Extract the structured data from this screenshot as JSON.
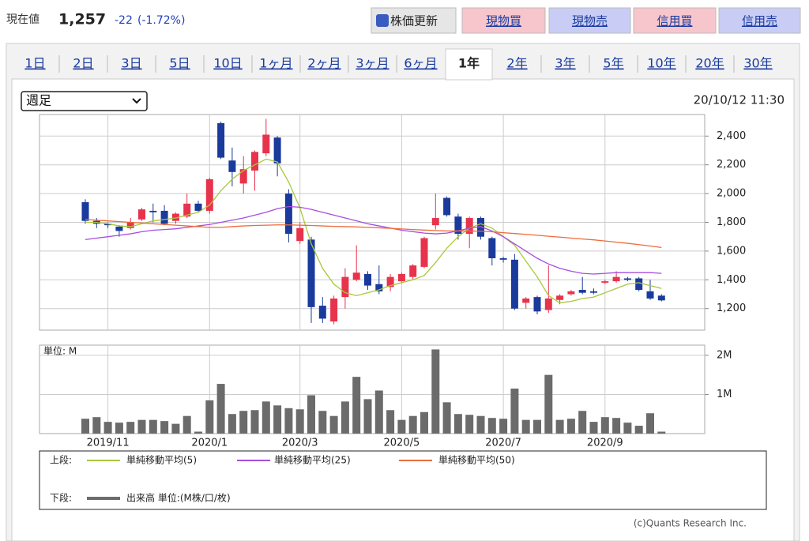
{
  "header": {
    "label": "現在値",
    "price": "1,257",
    "change": "-22",
    "change_pct": "(-1.72%)"
  },
  "buttons": [
    "株価更新",
    "現物買",
    "現物売",
    "信用買",
    "信用売"
  ],
  "tabs": [
    "1日",
    "2日",
    "3日",
    "5日",
    "10日",
    "1ヶ月",
    "2ヶ月",
    "3ヶ月",
    "6ヶ月",
    "1年",
    "2年",
    "3年",
    "5年",
    "10年",
    "20年",
    "30年"
  ],
  "active_tab": 9,
  "period_select": "週足",
  "timestamp": "20/10/12 11:30",
  "chart_data": [
    {
      "type": "candlestick",
      "up_color": "#e8334d",
      "down_color": "#1a3a9c",
      "grid": true,
      "open": [
        1940,
        1810,
        1790,
        1770,
        1760,
        1820,
        1880,
        1880,
        1810,
        1840,
        1930,
        1880,
        2490,
        2230,
        2070,
        2160,
        2280,
        2390,
        2000,
        1670,
        1680,
        1220,
        1110,
        1280,
        1400,
        1440,
        1370,
        1350,
        1390,
        1420,
        1490,
        1780,
        1970,
        1840,
        1720,
        1830,
        1690,
        1550,
        1540,
        1240,
        1280,
        1190,
        1260,
        1300,
        1330,
        1320,
        1380,
        1390,
        1410,
        1410,
        1320,
        1290
      ],
      "high": [
        1960,
        1830,
        1800,
        1780,
        1830,
        1900,
        1930,
        1920,
        1870,
        2000,
        1950,
        2110,
        2500,
        2320,
        2260,
        2300,
        2520,
        2400,
        2030,
        1800,
        1700,
        1280,
        1290,
        1480,
        1640,
        1460,
        1500,
        1440,
        1450,
        1510,
        1700,
        2000,
        1980,
        1860,
        1840,
        1840,
        1700,
        1560,
        1580,
        1280,
        1290,
        1500,
        1300,
        1330,
        1420,
        1340,
        1400,
        1460,
        1420,
        1420,
        1400,
        1300
      ],
      "low": [
        1790,
        1760,
        1760,
        1700,
        1750,
        1810,
        1800,
        1780,
        1790,
        1830,
        1870,
        1860,
        2240,
        2050,
        2000,
        2020,
        2260,
        2120,
        1660,
        1650,
        1100,
        1100,
        1090,
        1200,
        1390,
        1330,
        1300,
        1320,
        1380,
        1400,
        1480,
        1750,
        1840,
        1680,
        1620,
        1680,
        1500,
        1520,
        1190,
        1200,
        1160,
        1170,
        1230,
        1290,
        1300,
        1300,
        1370,
        1380,
        1390,
        1320,
        1260,
        1250
      ],
      "close": [
        1810,
        1790,
        1780,
        1740,
        1800,
        1890,
        1870,
        1790,
        1860,
        1930,
        1880,
        2100,
        2250,
        2150,
        2170,
        2290,
        2410,
        2210,
        1720,
        1760,
        1210,
        1130,
        1270,
        1420,
        1450,
        1360,
        1320,
        1420,
        1440,
        1500,
        1690,
        1830,
        1850,
        1720,
        1830,
        1700,
        1550,
        1540,
        1200,
        1270,
        1180,
        1270,
        1290,
        1320,
        1310,
        1310,
        1390,
        1420,
        1400,
        1330,
        1270,
        1257
      ],
      "lines": [
        {
          "name": "単純移動平均(5)",
          "color": "#a8c83a",
          "values": [
            1800,
            1800,
            1790,
            1775,
            1770,
            1790,
            1810,
            1820,
            1830,
            1850,
            1870,
            1920,
            2020,
            2100,
            2160,
            2200,
            2240,
            2220,
            2080,
            1900,
            1650,
            1480,
            1370,
            1310,
            1290,
            1310,
            1330,
            1360,
            1380,
            1400,
            1430,
            1520,
            1620,
            1700,
            1760,
            1790,
            1760,
            1700,
            1640,
            1530,
            1420,
            1290,
            1240,
            1250,
            1270,
            1280,
            1310,
            1340,
            1370,
            1380,
            1360,
            1340
          ]
        },
        {
          "name": "単純移動平均(25)",
          "color": "#a64ee0",
          "values": [
            1680,
            1690,
            1700,
            1710,
            1720,
            1735,
            1745,
            1750,
            1755,
            1765,
            1775,
            1785,
            1800,
            1815,
            1830,
            1850,
            1870,
            1895,
            1910,
            1905,
            1890,
            1870,
            1850,
            1830,
            1810,
            1790,
            1775,
            1760,
            1745,
            1735,
            1725,
            1720,
            1725,
            1740,
            1760,
            1770,
            1740,
            1700,
            1650,
            1600,
            1550,
            1510,
            1480,
            1460,
            1445,
            1440,
            1445,
            1450,
            1450,
            1450,
            1450,
            1445
          ]
        },
        {
          "name": "単純移動平均(50)",
          "color": "#ef6a3c",
          "values": [
            1820,
            1815,
            1810,
            1805,
            1800,
            1795,
            1790,
            1785,
            1780,
            1775,
            1770,
            1765,
            1765,
            1770,
            1775,
            1778,
            1780,
            1782,
            1782,
            1780,
            1778,
            1775,
            1772,
            1770,
            1768,
            1765,
            1762,
            1758,
            1754,
            1750,
            1746,
            1743,
            1740,
            1740,
            1740,
            1738,
            1734,
            1728,
            1722,
            1716,
            1710,
            1703,
            1697,
            1690,
            1684,
            1678,
            1670,
            1662,
            1654,
            1645,
            1635,
            1625
          ]
        }
      ],
      "ylim": [
        1050,
        2550
      ],
      "yticks": [
        {
          "value": 1200,
          "label": "1,200"
        },
        {
          "value": 1400,
          "label": "1,400"
        },
        {
          "value": 1600,
          "label": "1,600"
        },
        {
          "value": 1800,
          "label": "1,800"
        },
        {
          "value": 2000,
          "label": "2,000"
        },
        {
          "value": 2200,
          "label": "2,200"
        },
        {
          "value": 2400,
          "label": "2,400"
        }
      ]
    },
    {
      "type": "bar",
      "unit_label": "単位: M",
      "grid": true,
      "categories": [
        null,
        null,
        "2019/11",
        null,
        null,
        null,
        null,
        null,
        null,
        null,
        null,
        "2020/1",
        null,
        null,
        null,
        null,
        null,
        null,
        null,
        "2020/3",
        null,
        null,
        null,
        null,
        null,
        null,
        null,
        null,
        "2020/5",
        null,
        null,
        null,
        null,
        null,
        null,
        null,
        null,
        "2020/7",
        null,
        null,
        null,
        null,
        null,
        null,
        null,
        null,
        "2020/9",
        null,
        null,
        null,
        null,
        null
      ],
      "series": [
        {
          "name": "出来高 単位:(M株/口/枚)",
          "color": "#6b6b6b",
          "values": [
            0.38,
            0.42,
            0.3,
            0.28,
            0.3,
            0.35,
            0.35,
            0.32,
            0.25,
            0.45,
            0.05,
            0.85,
            1.27,
            0.5,
            0.58,
            0.6,
            0.82,
            0.72,
            0.65,
            0.62,
            0.98,
            0.58,
            0.45,
            0.82,
            1.45,
            0.88,
            1.1,
            0.6,
            0.35,
            0.45,
            0.55,
            2.15,
            0.8,
            0.5,
            0.48,
            0.45,
            0.4,
            0.38,
            1.15,
            0.35,
            0.35,
            1.5,
            0.35,
            0.38,
            0.58,
            0.3,
            0.42,
            0.4,
            0.28,
            0.2,
            0.52,
            0.05
          ]
        }
      ],
      "ylim": [
        0,
        2.26
      ],
      "yticks": [
        {
          "value": 1,
          "label": "1M"
        },
        {
          "value": 2,
          "label": "2M"
        }
      ]
    }
  ],
  "legend_labels": {
    "upper": "上段:",
    "lower": "下段:"
  },
  "copyright": "(c)Quants Research Inc."
}
